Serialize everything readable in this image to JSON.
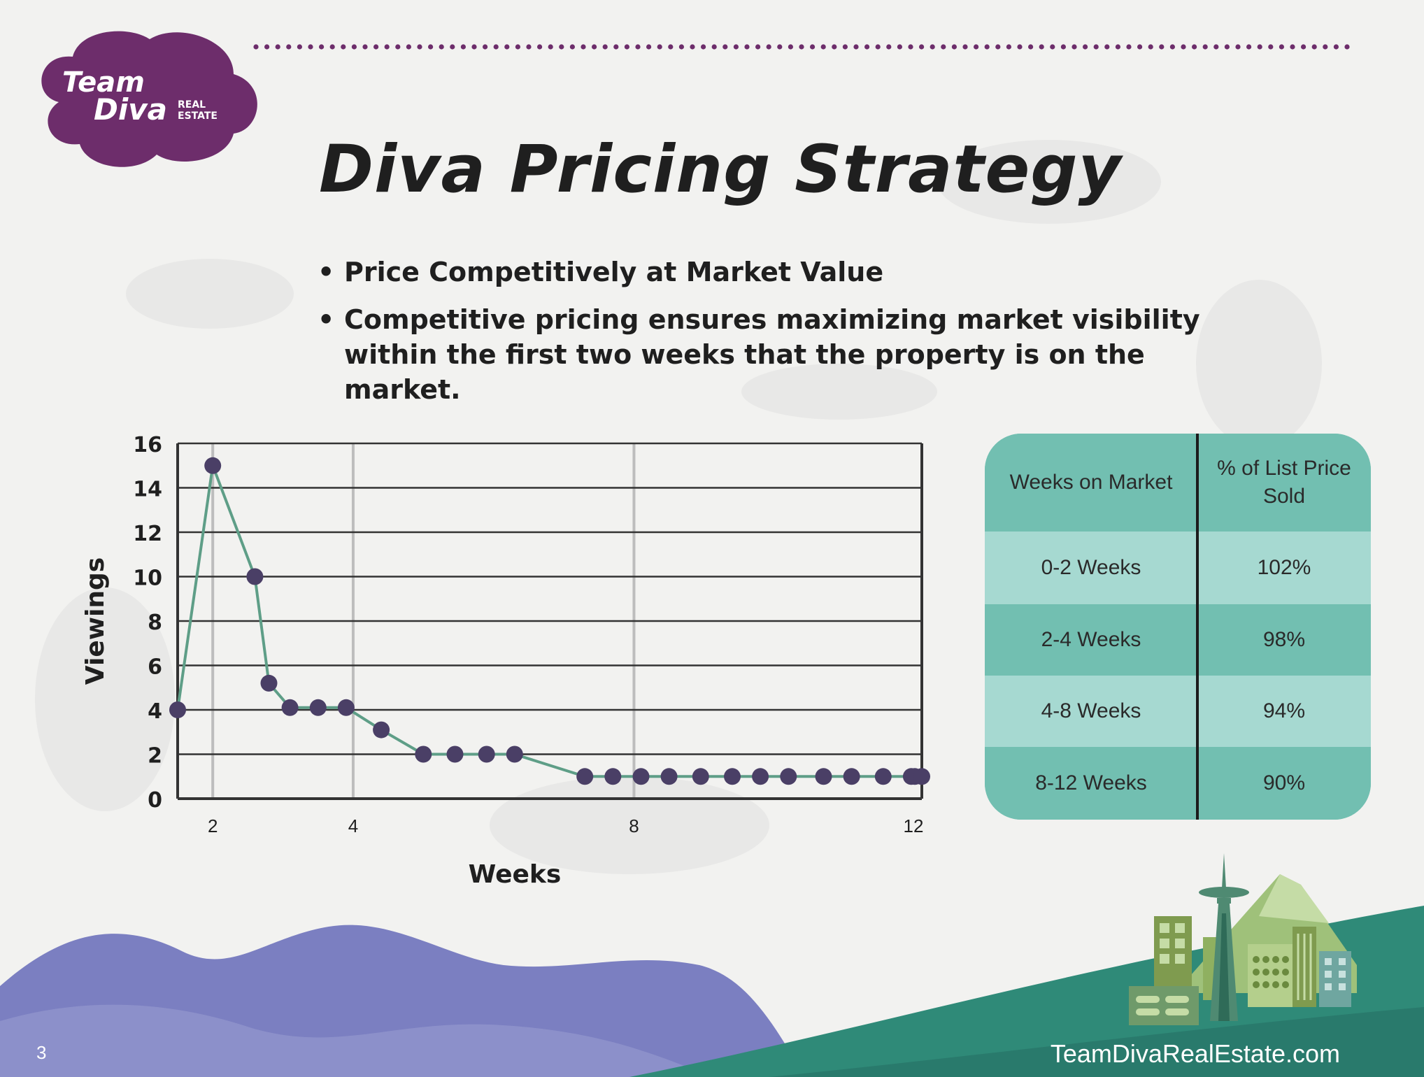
{
  "logo": {
    "line1": "Team",
    "line2": "Diva",
    "line3": "REAL",
    "line4": "ESTATE"
  },
  "title": "Diva Pricing Strategy",
  "bullets": [
    "Price Competitively at Market Value",
    "Competitive pricing ensures maximizing market visibility within the first two weeks that the property is on the market."
  ],
  "chart_data": {
    "type": "line",
    "title": "",
    "xlabel": "Weeks",
    "ylabel": "Viewings",
    "ylim": [
      0,
      16
    ],
    "xlim": [
      1.5,
      12.1
    ],
    "y_ticks": [
      "0",
      "2",
      "4",
      "6",
      "8",
      "10",
      "12",
      "14",
      "16"
    ],
    "x_ticks": [
      "2",
      "4",
      "8",
      "12"
    ],
    "grid": "horizontal lines every 2 viewings; vertical lines at weeks 2, 4 and 8",
    "series": [
      {
        "x": [
          1.5,
          2,
          2.6,
          2.8,
          3.1,
          3.5,
          3.9,
          4.4,
          5.0,
          5.45,
          5.9,
          6.3,
          7.3,
          7.7,
          8.1,
          8.5,
          8.95,
          9.4,
          9.8,
          10.2,
          10.7,
          11.1,
          11.55,
          11.95,
          12.0,
          12.1
        ],
        "values": [
          4,
          15,
          10,
          5.2,
          4.1,
          4.1,
          4.1,
          3.1,
          2,
          2,
          2,
          2,
          1,
          1,
          1,
          1,
          1,
          1,
          1,
          1,
          1,
          1,
          1,
          1,
          1,
          1
        ],
        "color": "#5e9e87",
        "marker_color": "#4a3f66"
      }
    ]
  },
  "table": {
    "headers": [
      "Weeks on Market",
      "% of List Price Sold"
    ],
    "rows": [
      [
        "0-2 Weeks",
        "102%"
      ],
      [
        "2-4 Weeks",
        "98%"
      ],
      [
        "4-8 Weeks",
        "94%"
      ],
      [
        "8-12 Weeks",
        "90%"
      ]
    ]
  },
  "footer": {
    "page_number": "3",
    "website": "TeamDivaRealEstate.com"
  },
  "colors": {
    "purple": "#6d2d6b",
    "teal_dark": "#72bfb1",
    "teal_light": "#a6d9d1",
    "line": "#5e9e87",
    "marker": "#4a3f66"
  }
}
